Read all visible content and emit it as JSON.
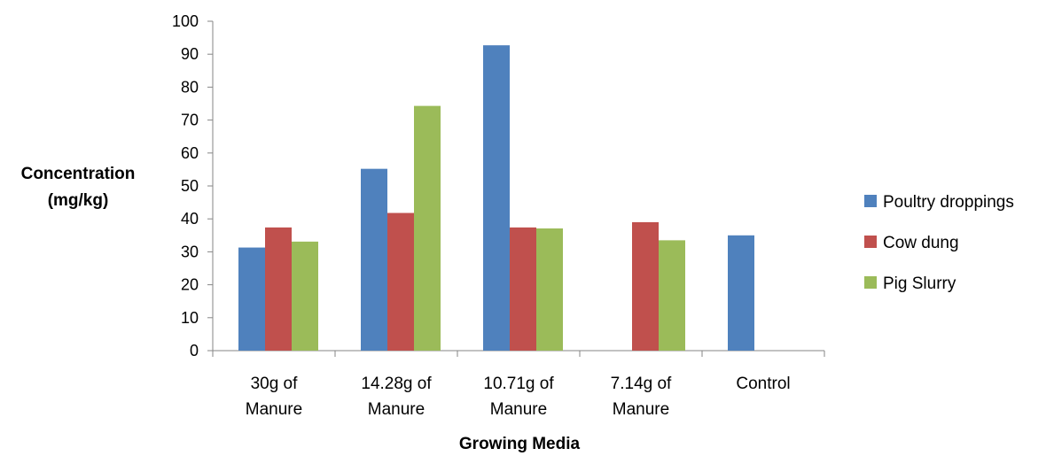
{
  "chart_data": {
    "type": "bar",
    "categories": [
      [
        "30g of",
        "Manure"
      ],
      [
        "14.28g of",
        "Manure"
      ],
      [
        "10.71g of",
        "Manure"
      ],
      [
        "7.14g of",
        "Manure"
      ],
      [
        "Control"
      ]
    ],
    "series": [
      {
        "name": "Poultry droppings",
        "color": "#4F81BD",
        "values": [
          31.3,
          55.2,
          92.7,
          null,
          35.0
        ]
      },
      {
        "name": "Cow dung",
        "color": "#C0504D",
        "values": [
          37.4,
          41.8,
          37.4,
          39.0,
          null
        ]
      },
      {
        "name": "Pig Slurry",
        "color": "#9BBB59",
        "values": [
          33.1,
          74.3,
          37.1,
          33.5,
          null
        ]
      }
    ],
    "ylabel": [
      "Concentration",
      "(mg/kg)"
    ],
    "xlabel": "Growing Media",
    "ylim": [
      0,
      100
    ],
    "yticks": [
      0,
      10,
      20,
      30,
      40,
      50,
      60,
      70,
      80,
      90,
      100
    ],
    "grid": false,
    "legend": "right"
  }
}
